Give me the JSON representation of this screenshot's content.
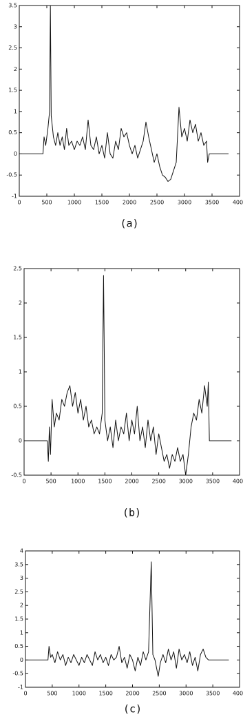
{
  "chart_data": [
    {
      "type": "line",
      "caption": "(a)",
      "color": "#111111",
      "grid": false,
      "xlim": [
        0,
        4000
      ],
      "ylim": [
        -1,
        3.5
      ],
      "xticks": [
        0,
        500,
        1000,
        1500,
        2000,
        2500,
        3000,
        3500,
        4000
      ],
      "yticks": [
        -1,
        -0.5,
        0,
        0.5,
        1,
        1.5,
        2,
        2.5,
        3,
        3.5
      ],
      "x": [
        0,
        430,
        450,
        480,
        520,
        550,
        565,
        580,
        620,
        660,
        700,
        740,
        780,
        820,
        860,
        900,
        950,
        1000,
        1050,
        1100,
        1150,
        1200,
        1250,
        1300,
        1350,
        1400,
        1450,
        1500,
        1550,
        1600,
        1650,
        1700,
        1750,
        1800,
        1850,
        1900,
        1950,
        2000,
        2050,
        2100,
        2150,
        2200,
        2250,
        2300,
        2350,
        2400,
        2450,
        2500,
        2550,
        2600,
        2650,
        2700,
        2750,
        2800,
        2850,
        2900,
        2950,
        3000,
        3050,
        3100,
        3150,
        3200,
        3250,
        3300,
        3350,
        3400,
        3420,
        3450,
        3800
      ],
      "values": [
        0,
        0,
        0.4,
        0.2,
        0.6,
        1.0,
        3.5,
        0.9,
        0.4,
        0.2,
        0.5,
        0.2,
        0.4,
        0.1,
        0.6,
        0.2,
        0.3,
        0.1,
        0.3,
        0.2,
        0.4,
        0.1,
        0.8,
        0.2,
        0.1,
        0.4,
        0.0,
        0.2,
        -0.1,
        0.5,
        0.0,
        -0.1,
        0.3,
        0.1,
        0.6,
        0.4,
        0.5,
        0.2,
        0.0,
        0.2,
        -0.1,
        0.1,
        0.3,
        0.75,
        0.4,
        0.1,
        -0.2,
        0.0,
        -0.3,
        -0.5,
        -0.55,
        -0.65,
        -0.6,
        -0.4,
        -0.2,
        1.1,
        0.4,
        0.6,
        0.3,
        0.8,
        0.5,
        0.7,
        0.3,
        0.5,
        0.2,
        0.3,
        -0.2,
        0,
        0
      ]
    },
    {
      "type": "line",
      "caption": "(b)",
      "color": "#111111",
      "grid": false,
      "xlim": [
        0,
        4000
      ],
      "ylim": [
        -0.5,
        2.5
      ],
      "xticks": [
        0,
        500,
        1000,
        1500,
        2000,
        2500,
        3000,
        3500,
        4000
      ],
      "yticks": [
        -0.5,
        0,
        0.5,
        1,
        1.5,
        2,
        2.5
      ],
      "x": [
        0,
        430,
        450,
        470,
        490,
        520,
        560,
        600,
        650,
        700,
        750,
        800,
        850,
        900,
        950,
        1000,
        1050,
        1100,
        1150,
        1200,
        1250,
        1300,
        1350,
        1400,
        1450,
        1475,
        1500,
        1550,
        1600,
        1650,
        1700,
        1750,
        1800,
        1850,
        1900,
        1950,
        2000,
        2050,
        2100,
        2150,
        2200,
        2250,
        2300,
        2350,
        2400,
        2450,
        2500,
        2550,
        2600,
        2650,
        2700,
        2750,
        2800,
        2850,
        2900,
        2950,
        3000,
        3050,
        3100,
        3150,
        3200,
        3250,
        3300,
        3350,
        3400,
        3420,
        3440,
        3850
      ],
      "values": [
        0,
        0,
        -0.3,
        0.2,
        -0.2,
        0.6,
        0.2,
        0.4,
        0.3,
        0.6,
        0.5,
        0.7,
        0.8,
        0.5,
        0.7,
        0.4,
        0.6,
        0.3,
        0.5,
        0.2,
        0.3,
        0.1,
        0.2,
        0.1,
        0.4,
        2.4,
        0.3,
        0.0,
        0.2,
        -0.1,
        0.3,
        0.0,
        0.2,
        0.1,
        0.4,
        0.0,
        0.3,
        0.1,
        0.5,
        0.0,
        0.2,
        -0.1,
        0.3,
        0.0,
        0.2,
        -0.2,
        0.1,
        -0.1,
        -0.3,
        -0.2,
        -0.4,
        -0.2,
        -0.3,
        -0.1,
        -0.3,
        -0.2,
        -0.5,
        -0.2,
        0.2,
        0.4,
        0.3,
        0.6,
        0.4,
        0.8,
        0.5,
        0.85,
        0,
        0
      ]
    },
    {
      "type": "line",
      "caption": "(c)",
      "color": "#111111",
      "grid": false,
      "xlim": [
        0,
        4000
      ],
      "ylim": [
        -1,
        4
      ],
      "xticks": [
        0,
        500,
        1000,
        1500,
        2000,
        2500,
        3000,
        3500,
        4000
      ],
      "yticks": [
        -1,
        -0.5,
        0,
        0.5,
        1,
        1.5,
        2,
        2.5,
        3,
        3.5,
        4
      ],
      "x": [
        0,
        420,
        440,
        470,
        500,
        550,
        600,
        650,
        700,
        750,
        800,
        850,
        900,
        950,
        1000,
        1050,
        1100,
        1150,
        1200,
        1250,
        1300,
        1350,
        1400,
        1450,
        1500,
        1550,
        1600,
        1650,
        1700,
        1750,
        1800,
        1850,
        1900,
        1950,
        2000,
        2050,
        2100,
        2150,
        2200,
        2250,
        2300,
        2350,
        2380,
        2420,
        2450,
        2480,
        2520,
        2570,
        2620,
        2670,
        2720,
        2770,
        2820,
        2870,
        2920,
        2970,
        3020,
        3070,
        3120,
        3170,
        3220,
        3270,
        3320,
        3370,
        3420,
        3800
      ],
      "values": [
        0,
        0,
        0.5,
        0.1,
        0.2,
        -0.1,
        0.3,
        0.0,
        0.2,
        -0.2,
        0.1,
        -0.1,
        0.2,
        0.0,
        -0.2,
        0.1,
        -0.1,
        0.2,
        0.0,
        -0.2,
        0.3,
        0.0,
        0.2,
        -0.1,
        0.1,
        -0.2,
        0.2,
        0.0,
        0.1,
        0.5,
        -0.1,
        0.1,
        -0.3,
        0.2,
        0.0,
        -0.4,
        0.1,
        -0.2,
        0.3,
        0.0,
        0.3,
        3.6,
        0.2,
        0.0,
        -0.3,
        -0.6,
        -0.1,
        0.2,
        -0.1,
        0.4,
        0.0,
        0.3,
        -0.3,
        0.4,
        0.0,
        0.2,
        -0.1,
        0.3,
        -0.2,
        0.1,
        -0.4,
        0.2,
        0.4,
        0.1,
        0,
        0
      ]
    }
  ]
}
